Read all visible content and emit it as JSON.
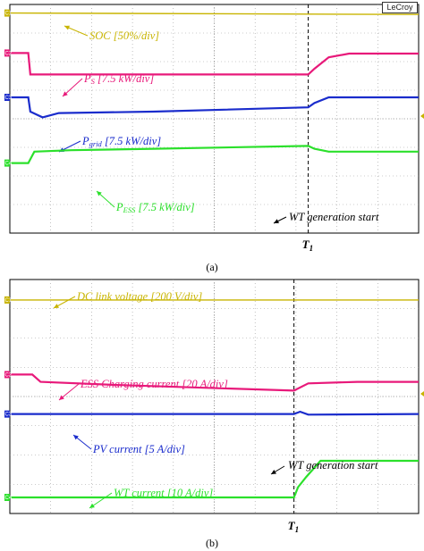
{
  "chart_data": [
    {
      "type": "line",
      "panel_label": "(a)",
      "brand": "LeCroy",
      "marker_label": "T",
      "marker_subscript": "1",
      "annotation": "WT generation start",
      "x_range": [
        0,
        10
      ],
      "marker_x": 7.3,
      "divisions": 8,
      "series": [
        {
          "name": "SOC",
          "label": "SOC [50%/div]",
          "color": "#c8b400",
          "channel": "C1",
          "points": [
            [
              0,
              7.7
            ],
            [
              10,
              7.65
            ]
          ]
        },
        {
          "name": "P_S",
          "label_main": "P",
          "label_sub": "S",
          "label_rest": " [7.5 kW/div]",
          "color": "#e8197a",
          "channel": "C2",
          "points": [
            [
              0,
              6.3
            ],
            [
              0.45,
              6.3
            ],
            [
              0.5,
              5.55
            ],
            [
              7.3,
              5.55
            ],
            [
              7.45,
              5.75
            ],
            [
              7.8,
              6.15
            ],
            [
              8.3,
              6.28
            ],
            [
              10,
              6.28
            ]
          ]
        },
        {
          "name": "P_grid",
          "label_main": "P",
          "label_sub": "grid",
          "label_rest": " [7.5 kW/div]",
          "color": "#1a2ccc",
          "channel": "C3",
          "points": [
            [
              0,
              4.75
            ],
            [
              0.45,
              4.75
            ],
            [
              0.5,
              4.25
            ],
            [
              0.8,
              4.05
            ],
            [
              1.2,
              4.2
            ],
            [
              3.5,
              4.25
            ],
            [
              7.3,
              4.4
            ],
            [
              7.45,
              4.55
            ],
            [
              7.8,
              4.75
            ],
            [
              10,
              4.75
            ]
          ]
        },
        {
          "name": "P_ESS",
          "label_main": "P",
          "label_sub": "ESS",
          "label_rest": " [7.5 kW/div]",
          "color": "#2be02b",
          "channel": "C4",
          "points": [
            [
              0,
              2.45
            ],
            [
              0.45,
              2.45
            ],
            [
              0.6,
              2.85
            ],
            [
              1.5,
              2.9
            ],
            [
              3.5,
              2.95
            ],
            [
              7.3,
              3.05
            ],
            [
              7.45,
              2.95
            ],
            [
              7.8,
              2.85
            ],
            [
              10,
              2.85
            ]
          ]
        }
      ]
    },
    {
      "type": "line",
      "panel_label": "(b)",
      "marker_label": "T",
      "marker_subscript": "1",
      "annotation": "WT generation start",
      "x_range": [
        0,
        10
      ],
      "marker_x": 6.95,
      "divisions": 8,
      "series": [
        {
          "name": "DC link voltage",
          "label": "DC link voltage [200 V/div]",
          "color": "#c8b400",
          "channel": "C1",
          "points": [
            [
              0,
              7.3
            ],
            [
              10,
              7.3
            ]
          ]
        },
        {
          "name": "ESS Charging current",
          "label": "ESS Charging current [20 A/div]",
          "color": "#e8197a",
          "channel": "C2",
          "points": [
            [
              0,
              4.75
            ],
            [
              0.55,
              4.75
            ],
            [
              0.75,
              4.5
            ],
            [
              2.5,
              4.4
            ],
            [
              6.95,
              4.2
            ],
            [
              7.3,
              4.45
            ],
            [
              8.5,
              4.5
            ],
            [
              10,
              4.5
            ]
          ]
        },
        {
          "name": "PV current",
          "label": "PV current [5 A/div]",
          "color": "#1a2ccc",
          "channel": "C3",
          "points": [
            [
              0,
              3.4
            ],
            [
              6.95,
              3.4
            ],
            [
              7.1,
              3.48
            ],
            [
              7.3,
              3.38
            ],
            [
              10,
              3.4
            ]
          ]
        },
        {
          "name": "WT current",
          "label": "WT current [10 A/div]",
          "color": "#2be02b",
          "channel": "C4",
          "points": [
            [
              0,
              0.55
            ],
            [
              6.95,
              0.55
            ],
            [
              7.05,
              0.9
            ],
            [
              7.25,
              1.25
            ],
            [
              7.6,
              1.8
            ],
            [
              10,
              1.8
            ]
          ]
        }
      ]
    }
  ]
}
